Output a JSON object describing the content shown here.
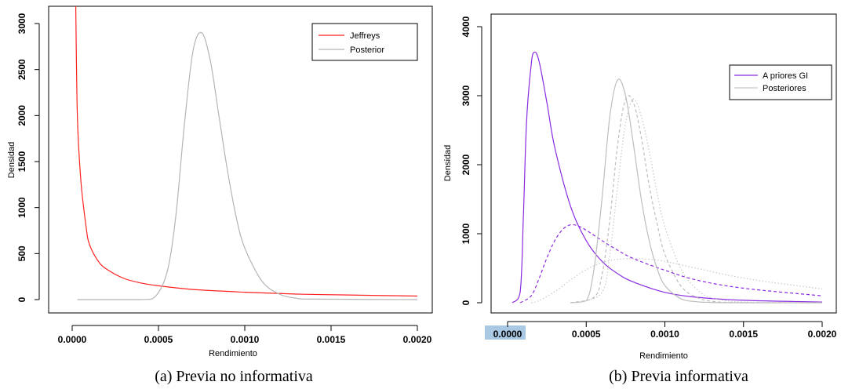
{
  "chart_data": [
    {
      "type": "line",
      "xlabel": "Rendimiento",
      "ylabel": "Densidad",
      "xlim": [
        0,
        0.002
      ],
      "ylim": [
        0,
        3000
      ],
      "x_ticks": [
        "0.0000",
        "0.0005",
        "0.0010",
        "0.0015",
        "0.0020"
      ],
      "y_ticks": [
        "0",
        "500",
        "1000",
        "1500",
        "2000",
        "2500",
        "3000"
      ],
      "caption": "(a)   Previa no informativa",
      "legend": {
        "position": "top-right",
        "entries": [
          "Jeffreys",
          "Posterior"
        ]
      },
      "series": [
        {
          "name": "Jeffreys",
          "color": "#ff2020",
          "style": "solid",
          "x": [
            2e-05,
            3e-05,
            5e-05,
            8e-05,
            0.0001,
            0.00015,
            0.0002,
            0.0003,
            0.0004,
            0.0005,
            0.0007,
            0.001,
            0.0013,
            0.0016,
            0.002
          ],
          "y": [
            3300,
            2000,
            1300,
            800,
            600,
            420,
            330,
            230,
            180,
            150,
            110,
            80,
            60,
            50,
            38
          ]
        },
        {
          "name": "Posterior",
          "color": "#b4b4b4",
          "style": "solid",
          "x": [
            3e-05,
            0.0004,
            0.00048,
            0.00055,
            0.0006,
            0.00065,
            0.0007,
            0.00075,
            0.0008,
            0.00085,
            0.0009,
            0.00095,
            0.001,
            0.0011,
            0.0012,
            0.0013,
            0.0014,
            0.002
          ],
          "y": [
            0,
            0,
            30,
            300,
            900,
            1900,
            2700,
            2900,
            2600,
            2000,
            1400,
            900,
            560,
            200,
            60,
            15,
            5,
            0
          ]
        }
      ]
    },
    {
      "type": "line",
      "xlabel": "Rendimiento",
      "ylabel": "Densidad",
      "xlim": [
        0,
        0.002
      ],
      "ylim": [
        0,
        4000
      ],
      "x_ticks": [
        "0.0000",
        "0.0005",
        "0.0010",
        "0.0015",
        "0.0020"
      ],
      "y_ticks": [
        "0",
        "1000",
        "2000",
        "3000",
        "4000"
      ],
      "highlighted_tick": "0.0000",
      "caption": "(b) Previa informativa",
      "legend": {
        "position": "top-right",
        "entries": [
          "A priores GI",
          "Posteriores"
        ]
      },
      "series": [
        {
          "name": "A priores GI",
          "color": "#8a2be2",
          "style": "solid",
          "x": [
            3e-05,
            8e-05,
            0.0001,
            0.00012,
            0.00015,
            0.00017,
            0.0002,
            0.00025,
            0.0003,
            0.0004,
            0.0005,
            0.0006,
            0.0007,
            0.0008,
            0.001,
            0.0012,
            0.0015,
            0.002
          ],
          "y": [
            0,
            150,
            1200,
            2600,
            3450,
            3630,
            3500,
            2900,
            2250,
            1400,
            900,
            600,
            420,
            300,
            150,
            80,
            35,
            10
          ]
        },
        {
          "color": "#8a2be2",
          "style": "dashed",
          "x": [
            8e-05,
            0.00015,
            0.0002,
            0.00025,
            0.0003,
            0.00035,
            0.0004,
            0.00045,
            0.0005,
            0.0006,
            0.0007,
            0.0008,
            0.001,
            0.0012,
            0.0015,
            0.002
          ],
          "y": [
            0,
            100,
            350,
            650,
            900,
            1060,
            1130,
            1110,
            1050,
            900,
            760,
            640,
            470,
            330,
            210,
            100
          ]
        },
        {
          "name": "Posteriores",
          "color": "#bdbdbd",
          "style": "solid",
          "x": [
            0.0004,
            0.0005,
            0.00055,
            0.0006,
            0.00065,
            0.0007,
            0.00075,
            0.0008,
            0.00085,
            0.0009,
            0.00095,
            0.001,
            0.0011,
            0.0012,
            0.0013,
            0.0015,
            0.002
          ],
          "y": [
            0,
            30,
            500,
            1500,
            2700,
            3230,
            3000,
            2300,
            1500,
            900,
            500,
            250,
            60,
            15,
            5,
            0,
            0
          ]
        },
        {
          "color": "#bdbdbd",
          "style": "dashed",
          "x": [
            0.0004,
            0.00055,
            0.0006,
            0.00065,
            0.0007,
            0.00075,
            0.0008,
            0.00085,
            0.0009,
            0.00095,
            0.001,
            0.0011,
            0.0012,
            0.0013,
            0.0015,
            0.002
          ],
          "y": [
            0,
            80,
            400,
            1200,
            2300,
            2950,
            2900,
            2400,
            1700,
            1150,
            700,
            250,
            80,
            20,
            0,
            0
          ]
        },
        {
          "color": "#c8c8c8",
          "style": "dotted",
          "x": [
            0.00045,
            0.0006,
            0.00065,
            0.0007,
            0.00075,
            0.0008,
            0.00085,
            0.0009,
            0.00095,
            0.001,
            0.0011,
            0.0012,
            0.0013,
            0.0015,
            0.002
          ],
          "y": [
            0,
            150,
            700,
            1700,
            2600,
            2950,
            2700,
            2200,
            1600,
            1100,
            500,
            200,
            70,
            10,
            0
          ]
        },
        {
          "color": "#c8c8c8",
          "style": "dotted",
          "x": [
            0.00015,
            0.0002,
            0.0003,
            0.0004,
            0.0005,
            0.0006,
            0.0007,
            0.0008,
            0.0009,
            0.001,
            0.0012,
            0.0014,
            0.0016,
            0.0018,
            0.002
          ],
          "y": [
            0,
            30,
            160,
            330,
            480,
            580,
            630,
            640,
            630,
            600,
            500,
            400,
            320,
            260,
            200
          ]
        }
      ]
    }
  ]
}
